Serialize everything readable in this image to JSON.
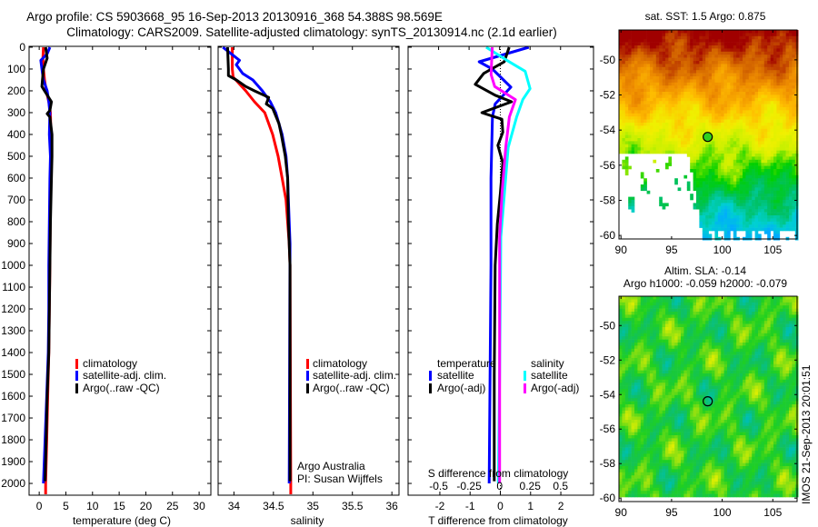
{
  "header": {
    "title_line1": "Argo profile: CS 5903668_95 16-Sep-2013 20130916_368 54.388S 98.569E",
    "title_line2": "Climatology: CARS2009. Satellite-adjusted climatology: synTS_20130914.nc (2.1d earlier)"
  },
  "credits": {
    "line1": "Argo Australia",
    "line2": "PI: Susan Wijffels"
  },
  "stamp": "IMOS 21-Sep-2013 20:01:51",
  "colors": {
    "climatology": "#ff0000",
    "satellite": "#0000ff",
    "argo": "#000000",
    "s_satellite": "#00ffff",
    "s_argo": "#ff00ff"
  },
  "chart_data": [
    {
      "type": "line",
      "id": "temperature",
      "xlabel": "temperature (deg C)",
      "ylabel": "",
      "xlim": [
        -1.9,
        32.2
      ],
      "ylim": [
        2054,
        -4
      ],
      "xticks": [
        0,
        5,
        10,
        15,
        20,
        25,
        30
      ],
      "yticks": [
        0,
        100,
        200,
        300,
        400,
        500,
        600,
        700,
        800,
        900,
        1000,
        1100,
        1200,
        1300,
        1400,
        1500,
        1600,
        1700,
        1800,
        1900,
        2000
      ],
      "legend": [
        "climatology",
        "satellite-adj. clim.",
        "Argo(..raw -QC)"
      ],
      "legend_position": "lower-middle",
      "series": [
        {
          "name": "climatology",
          "color": "#ff0000",
          "depth": [
            0,
            50,
            100,
            150,
            200,
            250,
            300,
            400,
            500,
            700,
            1000,
            1200,
            1400,
            1600,
            1800,
            2000,
            2050
          ],
          "values": [
            0.8,
            0.7,
            0.8,
            1.0,
            1.3,
            1.8,
            2.1,
            2.2,
            2.2,
            2.1,
            2.0,
            1.9,
            1.8,
            1.6,
            1.4,
            1.2,
            1.2
          ]
        },
        {
          "name": "satellite-adj. clim.",
          "color": "#0000ff",
          "depth": [
            0,
            30,
            60,
            100,
            150,
            200,
            250,
            300,
            400,
            500,
            600,
            800,
            1000,
            1200,
            1400,
            1600,
            1800,
            2000
          ],
          "values": [
            2.0,
            1.5,
            0.3,
            0.5,
            0.8,
            1.5,
            1.8,
            2.0,
            1.9,
            2.1,
            2.0,
            1.9,
            1.8,
            1.8,
            1.7,
            1.4,
            1.1,
            0.8
          ]
        },
        {
          "name": "Argo(..raw -QC)",
          "color": "#000000",
          "depth": [
            0,
            50,
            100,
            150,
            180,
            200,
            250,
            290,
            305,
            320,
            400,
            500,
            600,
            800,
            1000,
            1200,
            1400,
            1600,
            1800,
            1990
          ],
          "values": [
            1.2,
            1.5,
            0.8,
            0.6,
            0.5,
            1.0,
            2.3,
            2.0,
            1.5,
            2.0,
            2.4,
            2.4,
            2.3,
            2.1,
            2.0,
            1.9,
            1.8,
            1.5,
            1.3,
            1.1
          ]
        }
      ]
    },
    {
      "type": "line",
      "id": "salinity",
      "xlabel": "salinity",
      "ylabel": "",
      "xlim": [
        33.8,
        36.09
      ],
      "ylim": [
        2054,
        -4
      ],
      "xticks": [
        34,
        34.5,
        35,
        35.5,
        36
      ],
      "legend": [
        "climatology",
        "satellite-adj. clim.",
        "Argo(..raw -QC)"
      ],
      "legend_position": "lower-middle",
      "series": [
        {
          "name": "climatology",
          "color": "#ff0000",
          "depth": [
            0,
            100,
            137,
            200,
            250,
            300,
            400,
            500,
            600,
            700,
            900,
            1000,
            2000,
            2050
          ],
          "values": [
            33.98,
            33.98,
            33.99,
            34.15,
            34.26,
            34.39,
            34.49,
            34.56,
            34.61,
            34.66,
            34.7,
            34.71,
            34.72,
            34.72
          ]
        },
        {
          "name": "satellite-adj. clim.",
          "color": "#0000ff",
          "depth": [
            0,
            40,
            60,
            80,
            120,
            150,
            200,
            250,
            300,
            400,
            500,
            600,
            700,
            900,
            2000
          ],
          "values": [
            33.86,
            34.0,
            34.07,
            34.03,
            34.11,
            34.24,
            34.36,
            34.46,
            34.53,
            34.61,
            34.66,
            34.68,
            34.69,
            34.71,
            34.7
          ]
        },
        {
          "name": "Argo(..raw -QC)",
          "color": "#000000",
          "depth": [
            0,
            100,
            130,
            150,
            180,
            200,
            230,
            260,
            280,
            350,
            400,
            500,
            600,
            800,
            1000,
            1990
          ],
          "values": [
            33.92,
            33.93,
            33.93,
            34.03,
            34.15,
            34.26,
            34.44,
            34.41,
            34.49,
            34.57,
            34.6,
            34.65,
            34.68,
            34.69,
            34.71,
            34.71
          ]
        }
      ]
    },
    {
      "type": "line",
      "id": "difference",
      "xlabel": "T difference from climatology",
      "x2label": "S difference from climatology",
      "xlim": [
        -3.05,
        3.08
      ],
      "x2lim": [
        -0.75,
        0.77
      ],
      "ylim": [
        2054,
        -4
      ],
      "xticks": [
        -2,
        -1,
        0,
        1,
        2
      ],
      "x2ticks": [
        -0.5,
        -0.25,
        0,
        0.25,
        0.5
      ],
      "legend_groups": [
        "temperature",
        "salinity"
      ],
      "legend": [
        "satellite",
        "Argo(-adj)",
        "satellite",
        "Argo(-adj)"
      ],
      "series": [
        {
          "name": "T satellite",
          "axis": "T",
          "color": "#0000ff",
          "depth": [
            0,
            67,
            100,
            183,
            260,
            320,
            600,
            1000,
            1500,
            2000
          ],
          "values": [
            0.94,
            -0.7,
            -0.26,
            0.35,
            -0.17,
            -0.26,
            -0.31,
            -0.31,
            -0.34,
            -0.37
          ]
        },
        {
          "name": "T Argo(-adj)",
          "axis": "T",
          "color": "#000000",
          "depth": [
            0,
            67,
            120,
            170,
            220,
            250,
            300,
            330,
            390,
            450,
            530,
            670,
            810,
            1000,
            1500,
            1990
          ],
          "values": [
            0.29,
            0.13,
            -0.55,
            -0.83,
            -0.17,
            0.37,
            -0.61,
            0.05,
            0.08,
            -0.08,
            0.08,
            0.0,
            -0.1,
            -0.17,
            -0.2,
            -0.2
          ]
        },
        {
          "name": "S satellite",
          "axis": "S",
          "color": "#00ffff",
          "depth": [
            0,
            60,
            110,
            190,
            240,
            320,
            460,
            670,
            870,
            1500,
            2000
          ],
          "values": [
            -0.11,
            0.06,
            0.21,
            0.25,
            0.19,
            0.14,
            0.07,
            0.04,
            0.01,
            0.0,
            -0.01
          ]
        },
        {
          "name": "S Argo(-adj)",
          "axis": "S",
          "color": "#ff00ff",
          "depth": [
            0,
            125,
            180,
            240,
            320,
            460,
            670,
            870,
            1500,
            2000
          ],
          "values": [
            -0.06,
            -0.07,
            -0.04,
            0.13,
            0.08,
            0.05,
            0.02,
            0.0,
            0.0,
            0.0
          ]
        }
      ]
    },
    {
      "type": "heatmap",
      "id": "sst-map",
      "title": "sat. SST: 1.5 Argo: 0.875",
      "xlim": [
        89.8,
        107.4
      ],
      "ylim": [
        -60.2,
        -48.3
      ],
      "xticks": [
        90,
        95,
        100,
        105
      ],
      "yticks": [
        -50,
        -52,
        -54,
        -56,
        -58,
        -60
      ],
      "marker": {
        "lon": 98.569,
        "lat": -54.388
      }
    },
    {
      "type": "heatmap",
      "id": "sla-map",
      "title_line1": "Altim. SLA: -0.14",
      "title_line2": "Argo h1000: -0.059 h2000: -0.079",
      "xlim": [
        89.8,
        107.4
      ],
      "ylim": [
        -60.2,
        -48.3
      ],
      "xticks": [
        90,
        95,
        100,
        105
      ],
      "yticks": [
        -50,
        -52,
        -54,
        -56,
        -58,
        -60
      ],
      "marker": {
        "lon": 98.569,
        "lat": -54.388
      }
    }
  ]
}
